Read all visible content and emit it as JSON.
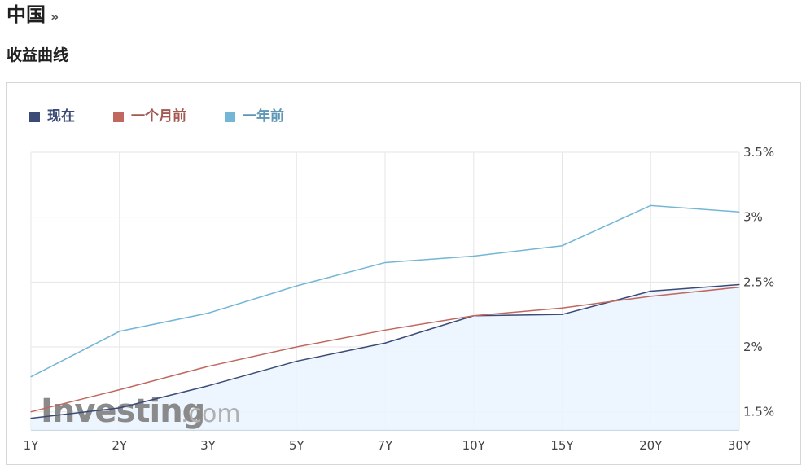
{
  "header": {
    "country": "中国",
    "country_link_glyph": "»",
    "section_title": "收益曲线"
  },
  "watermark": {
    "brand": "Investing",
    "suffix": ".com"
  },
  "colors": {
    "now": "#3b4a76",
    "month_ago": "#c0685f",
    "year_ago": "#74b6d6",
    "area_fill": "#eaf4fe",
    "grid": "#e6e6e6"
  },
  "chart_data": {
    "type": "line",
    "categories": [
      "1Y",
      "2Y",
      "3Y",
      "5Y",
      "7Y",
      "10Y",
      "15Y",
      "20Y",
      "30Y"
    ],
    "y_ticks": [
      "1.5%",
      "2%",
      "2.5%",
      "3%",
      "3.5%"
    ],
    "ylim": [
      1.36,
      3.5
    ],
    "grid": true,
    "legend_position": "top-left",
    "series": [
      {
        "name": "现在",
        "color": "#3b4a76",
        "area": true,
        "values": [
          1.45,
          1.53,
          1.7,
          1.89,
          2.03,
          2.24,
          2.25,
          2.43,
          2.48
        ]
      },
      {
        "name": "一个月前",
        "color": "#c0685f",
        "area": false,
        "values": [
          1.5,
          1.67,
          1.85,
          2.0,
          2.13,
          2.24,
          2.3,
          2.39,
          2.46
        ]
      },
      {
        "name": "一年前",
        "color": "#74b6d6",
        "area": false,
        "values": [
          1.77,
          2.12,
          2.26,
          2.47,
          2.65,
          2.7,
          2.78,
          3.09,
          3.04
        ]
      }
    ]
  }
}
